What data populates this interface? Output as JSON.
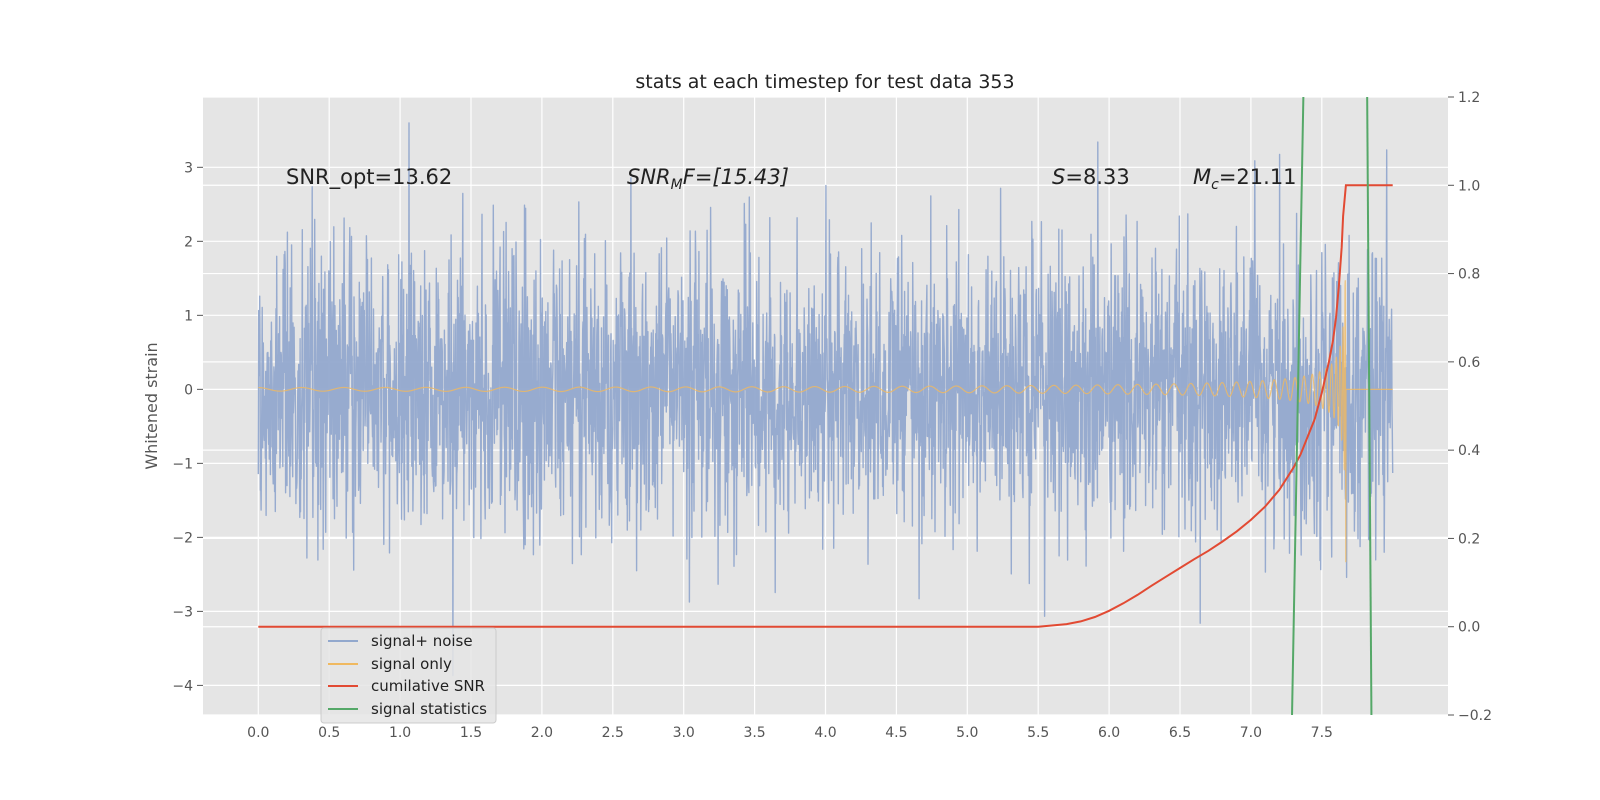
{
  "chart_data": {
    "type": "line",
    "title": "stats at each timestep for test data 353",
    "xlabel": "",
    "ylabel": "Whitened strain",
    "xlim": [
      -0.39,
      8.39
    ],
    "ylim": [
      -4.4,
      3.95
    ],
    "y2lim": [
      -0.2,
      1.2
    ],
    "grid": true,
    "legend_position": "lower-left",
    "xticks": [
      "0.0",
      "0.5",
      "1.0",
      "1.5",
      "2.0",
      "2.5",
      "3.0",
      "3.5",
      "4.0",
      "4.5",
      "5.0",
      "5.5",
      "6.0",
      "6.5",
      "7.0",
      "7.5"
    ],
    "yticks": [
      "3",
      "2",
      "1",
      "0",
      "−1",
      "−2",
      "−3",
      "−4"
    ],
    "y2ticks": [
      "1.2",
      "1.0",
      "0.8",
      "0.6",
      "0.4",
      "0.2",
      "0.0",
      "−0.2"
    ],
    "annotations": {
      "snr_opt": "SNR_opt=13.62",
      "snr_mf_main": "SNR",
      "snr_mf_sub": "M",
      "snr_mf_rest": "F=[15.43]",
      "s_sym": "S",
      "s_val": "=8.33",
      "mc_sym": "M",
      "mc_sub": "c",
      "mc_val": "=21.11"
    },
    "series": [
      {
        "name": "signal+ noise",
        "color": "#92a8cd",
        "sigma": 0.95,
        "duration": 8.0
      },
      {
        "name": "signal only",
        "color": "#f0b960",
        "merger_time": 7.67,
        "peak_amplitude": 2.6
      },
      {
        "name": "cumilative SNR",
        "color": "#e24a33",
        "axis": "right",
        "x": [
          0.0,
          5.5,
          5.7,
          5.8,
          5.9,
          6.0,
          6.1,
          6.2,
          6.3,
          6.4,
          6.5,
          6.6,
          6.7,
          6.8,
          6.9,
          7.0,
          7.1,
          7.2,
          7.3,
          7.35,
          7.4,
          7.45,
          7.5,
          7.55,
          7.58,
          7.6,
          7.62,
          7.64,
          7.65,
          7.67,
          8.0
        ],
        "y": [
          0.0,
          0.0,
          0.006,
          0.012,
          0.022,
          0.036,
          0.053,
          0.072,
          0.093,
          0.113,
          0.133,
          0.153,
          0.172,
          0.193,
          0.216,
          0.242,
          0.272,
          0.31,
          0.36,
          0.39,
          0.43,
          0.47,
          0.53,
          0.6,
          0.65,
          0.7,
          0.77,
          0.86,
          0.93,
          1.0,
          1.0
        ]
      },
      {
        "name": "signal statistics",
        "color": "#55a868",
        "lines": [
          [
            7.29,
            -4.4,
            7.37,
            3.95
          ],
          [
            7.82,
            3.95,
            7.85,
            -4.4
          ]
        ]
      }
    ]
  }
}
